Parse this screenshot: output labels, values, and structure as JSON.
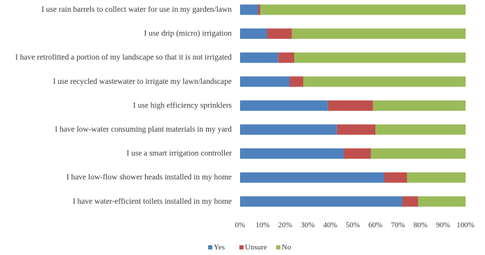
{
  "chart_data": {
    "type": "bar",
    "orientation": "horizontal",
    "stacked": true,
    "categories": [
      "I use rain barrels to collect water for use in my garden/lawn",
      "I use drip (micro) irrigation",
      "I have retrofitted a portion of my landscape so that it is not irrigated",
      "I use recycled wastewater to irrigate my lawn/landscape",
      "I use high efficiency sprinklers",
      "I have low-water consuming plant materials in my yard",
      "I use a smart irrigation controller",
      "I have low-flow shower heads installed in my home",
      "I have water-efficient toilets installed in my home"
    ],
    "series": [
      {
        "name": "Yes",
        "color": "#4f81bd",
        "values": [
          8,
          12,
          17,
          22,
          39,
          43,
          46,
          64,
          72
        ]
      },
      {
        "name": "Unsure",
        "color": "#c0504d",
        "values": [
          1,
          11,
          7,
          6,
          20,
          17,
          12,
          10,
          7
        ]
      },
      {
        "name": "No",
        "color": "#9bbb59",
        "values": [
          91,
          77,
          76,
          72,
          41,
          40,
          42,
          26,
          21
        ]
      }
    ],
    "x_ticks": [
      "0%",
      "10%",
      "20%",
      "30%",
      "40%",
      "50%",
      "60%",
      "70%",
      "80%",
      "90%",
      "100%"
    ],
    "xlim": [
      0,
      100
    ],
    "grid": false,
    "legend_position": "bottom-center",
    "title": "",
    "xlabel": "",
    "ylabel": ""
  }
}
